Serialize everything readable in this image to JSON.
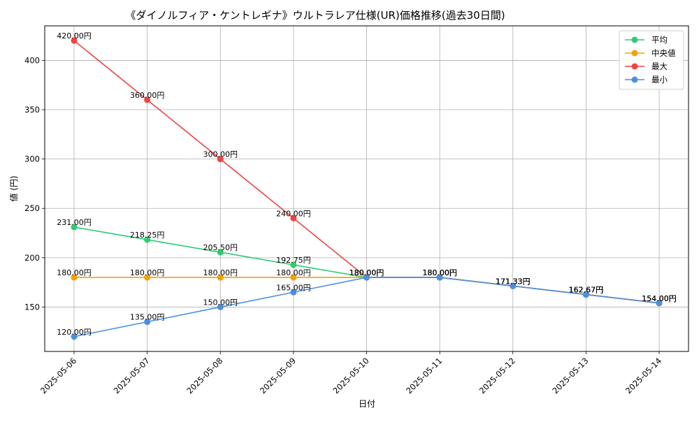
{
  "chart_data": {
    "type": "line",
    "title": "《ダイノルフィア・ケントレギナ》ウルトラレア仕様(UR)価格推移(過去30日間)",
    "xlabel": "日付",
    "ylabel": "値 (円)",
    "categories": [
      "2025-05-06",
      "2025-05-07",
      "2025-05-08",
      "2025-05-09",
      "2025-05-10",
      "2025-05-11",
      "2025-05-12",
      "2025-05-13",
      "2025-05-14"
    ],
    "ylim": [
      105,
      435
    ],
    "yticks": [
      150,
      200,
      250,
      300,
      350,
      400
    ],
    "grid": true,
    "legend_position": "top-right",
    "value_suffix": "円",
    "series": [
      {
        "name": "平均",
        "color": "#2ecc71",
        "values": [
          231.0,
          218.25,
          205.5,
          192.75,
          180.0,
          180.0,
          171.33,
          162.67,
          154.0
        ]
      },
      {
        "name": "中央値",
        "color": "#f5a000",
        "values": [
          180.0,
          180.0,
          180.0,
          180.0,
          180.0,
          180.0,
          171.33,
          162.67,
          154.0
        ]
      },
      {
        "name": "最大",
        "color": "#ef4444",
        "values": [
          420.0,
          360.0,
          300.0,
          240.0,
          180.0,
          180.0,
          171.33,
          162.67,
          154.0
        ]
      },
      {
        "name": "最小",
        "color": "#4a90e2",
        "values": [
          120.0,
          135.0,
          150.0,
          165.0,
          180.0,
          180.0,
          171.33,
          162.67,
          154.0
        ]
      }
    ]
  }
}
